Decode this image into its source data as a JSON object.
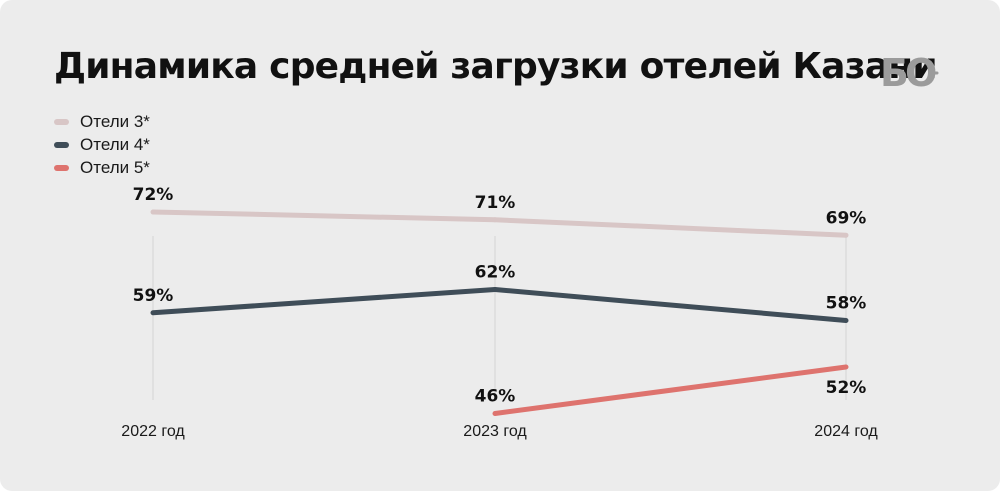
{
  "header": {
    "title": "Динамика средней загрузки отелей Казани",
    "logo_text": "БО"
  },
  "colors": {
    "background": "#ececec",
    "guide": "#d3d3d3",
    "logo": "#9b9b9b"
  },
  "chart_data": {
    "type": "line",
    "title": "Динамика средней загрузки отелей Казани",
    "xlabel": "",
    "ylabel": "",
    "categories": [
      "2022 год",
      "2023 год",
      "2024 год"
    ],
    "value_suffix": "%",
    "ylim": [
      40,
      80
    ],
    "grid": false,
    "legend_position": "top-left",
    "series": [
      {
        "name": "Отели 3*",
        "color": "#d8c6c6",
        "values": [
          72,
          71,
          69
        ],
        "label_pos": [
          "above",
          "above",
          "above"
        ]
      },
      {
        "name": "Отели 4*",
        "color": "#3f4d58",
        "values": [
          59,
          62,
          58
        ],
        "label_pos": [
          "above",
          "above",
          "above"
        ]
      },
      {
        "name": "Отели 5*",
        "color": "#de736e",
        "values": [
          null,
          46,
          52
        ],
        "label_pos": [
          null,
          "above",
          "below"
        ]
      }
    ]
  }
}
